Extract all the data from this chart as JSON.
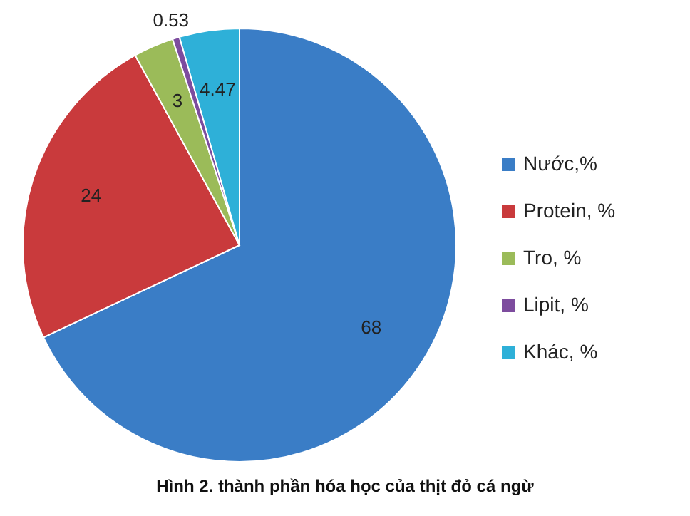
{
  "chart_data": {
    "type": "pie",
    "title": "Hình 2. thành phần hóa học của thịt đỏ cá ngừ",
    "categories": [
      "Nước,%",
      "Protein, %",
      "Tro, %",
      "Lipit, %",
      "Khác, %"
    ],
    "values": [
      68,
      24,
      3,
      0.53,
      4.47
    ],
    "colors": [
      "#3a7dc6",
      "#c93a3c",
      "#9bbb59",
      "#7d4c9e",
      "#2eb0d8"
    ],
    "data_labels": true,
    "legend": "right"
  }
}
